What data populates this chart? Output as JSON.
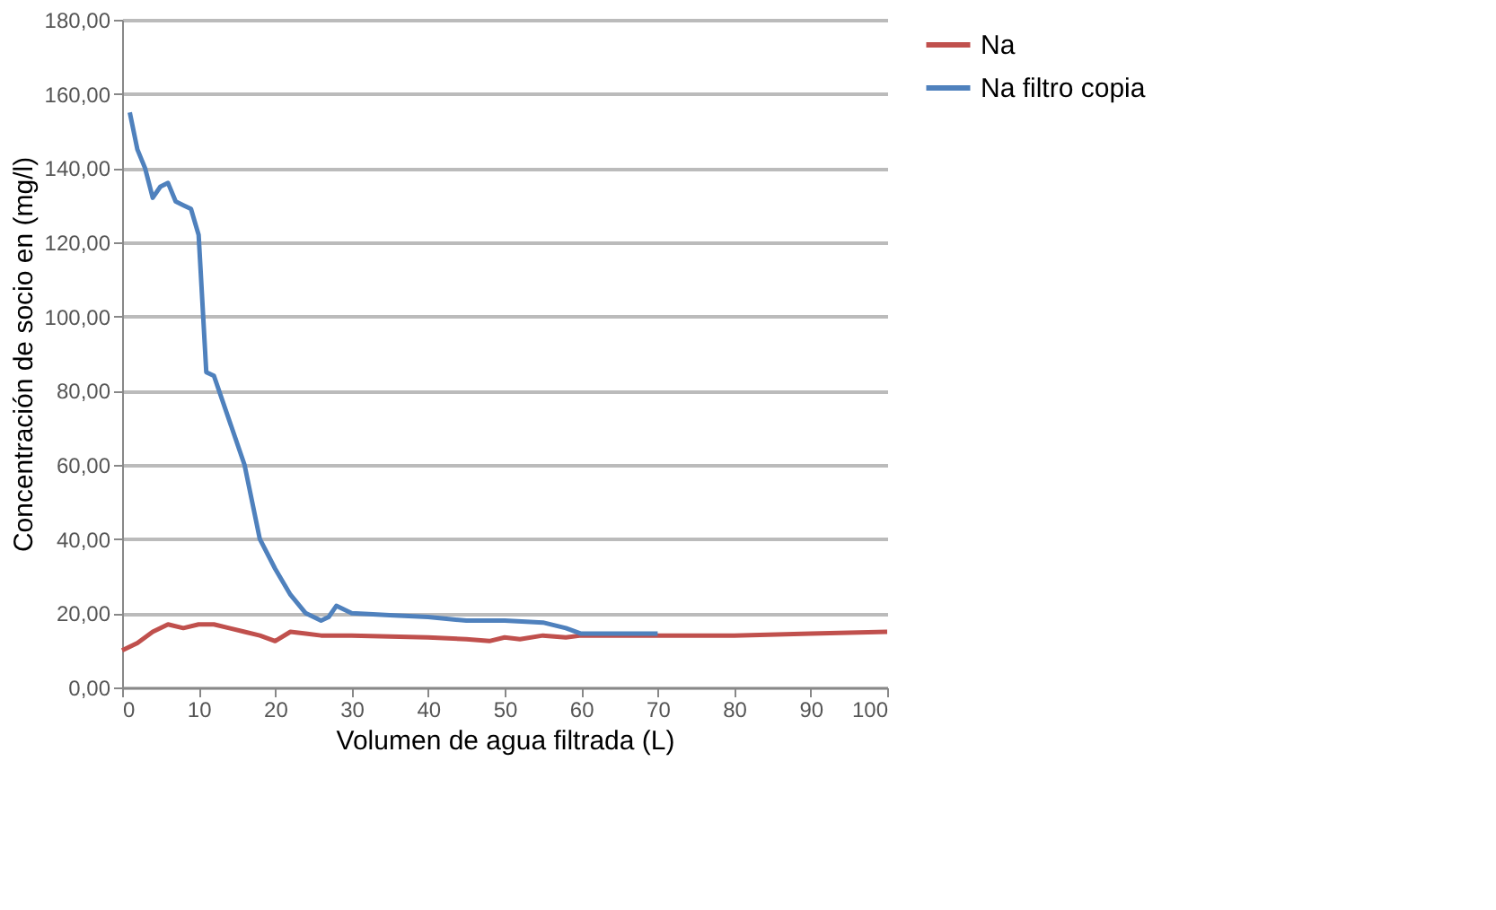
{
  "chart_data": {
    "type": "line",
    "xlabel": "Volumen de agua filtrada (L)",
    "ylabel": "Concentración de socio en (mg/l)",
    "xlim": [
      0,
      100
    ],
    "xticks": [
      0,
      10,
      20,
      30,
      40,
      50,
      60,
      70,
      80,
      90,
      100
    ],
    "ylim": [
      0,
      180
    ],
    "yticks": [
      {
        "value": 0,
        "label": "0,00"
      },
      {
        "value": 20,
        "label": "20,00"
      },
      {
        "value": 40,
        "label": "40,00"
      },
      {
        "value": 60,
        "label": "60,00"
      },
      {
        "value": 80,
        "label": "80,00"
      },
      {
        "value": 100,
        "label": "100,00"
      },
      {
        "value": 120,
        "label": "120,00"
      },
      {
        "value": 140,
        "label": "140,00"
      },
      {
        "value": 160,
        "label": "160,00"
      },
      {
        "value": 180,
        "label": "180,00"
      }
    ],
    "grid": "y",
    "legend": "right",
    "marker": "none",
    "line_style": "solid",
    "series": [
      {
        "name": "Na",
        "color": "#c0504d",
        "x": [
          0,
          2,
          4,
          6,
          8,
          10,
          12,
          14,
          16,
          18,
          20,
          22,
          24,
          26,
          30,
          40,
          45,
          48,
          50,
          52,
          55,
          58,
          60,
          70,
          80,
          90,
          100
        ],
        "values": [
          10,
          12,
          15,
          17,
          16,
          17,
          17,
          16,
          15,
          14,
          12.5,
          15,
          14.5,
          14,
          14,
          13.5,
          13,
          12.5,
          13.5,
          13,
          14,
          13.5,
          14,
          14,
          14,
          14.5,
          15
        ]
      },
      {
        "name": "Na filtro copia",
        "color": "#4f81bd",
        "x": [
          1,
          2,
          3,
          4,
          5,
          6,
          7,
          8,
          9,
          10,
          11,
          12,
          14,
          16,
          18,
          20,
          22,
          24,
          26,
          27,
          28,
          30,
          35,
          40,
          45,
          50,
          55,
          58,
          60,
          65,
          70
        ],
        "values": [
          155,
          145,
          140,
          132,
          135,
          136,
          131,
          130,
          129,
          122,
          85,
          84,
          72,
          60,
          40,
          32,
          25,
          20,
          18,
          19,
          22,
          20,
          19.5,
          19,
          18,
          18,
          17.5,
          16,
          14.5,
          14.5,
          14.5
        ]
      }
    ]
  }
}
